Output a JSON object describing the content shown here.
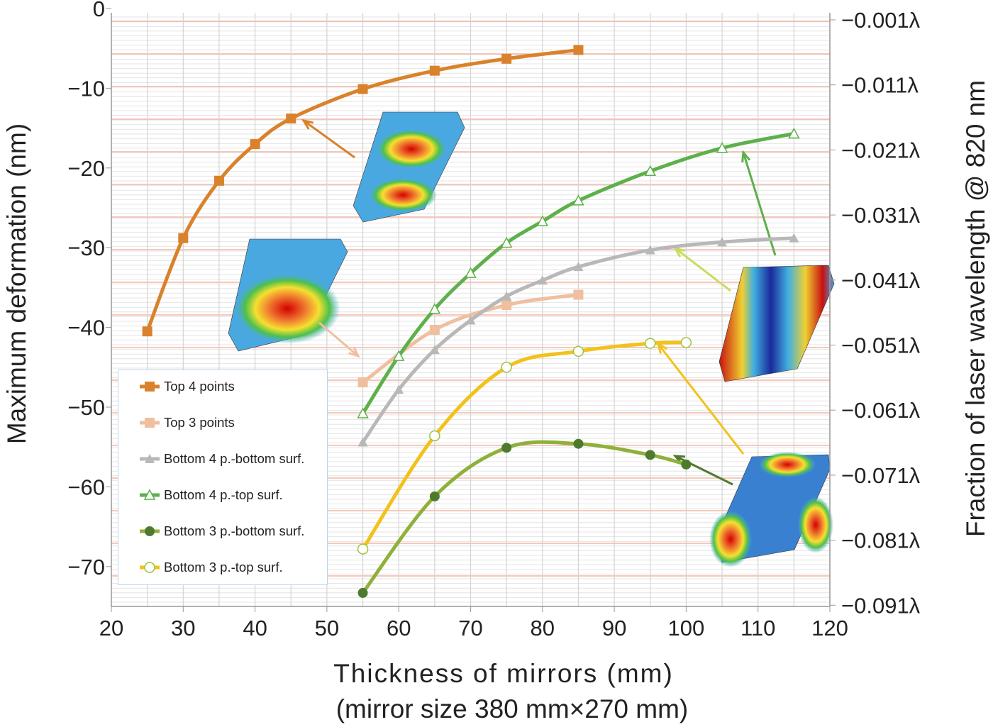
{
  "chart_data": {
    "type": "line",
    "xlabel": "Thickness of mirrors (mm)",
    "xlabel_sub": "(mirror size 380 mm×270 mm)",
    "ylabel": "Maximum deformation (nm)",
    "y2label": "Fraction of laser wavelength @ 820 nm",
    "xlim": [
      20,
      120
    ],
    "ylim": [
      -75,
      0
    ],
    "xticks": [
      "20",
      "30",
      "40",
      "50",
      "60",
      "70",
      "80",
      "90",
      "100",
      "110",
      "120"
    ],
    "yticks": [
      "0",
      "−10",
      "−20",
      "−30",
      "−40",
      "−50",
      "−60",
      "−70"
    ],
    "y2ticks": [
      "−0.001λ",
      "−0.011λ",
      "−0.021λ",
      "−0.031λ",
      "−0.041λ",
      "−0.051λ",
      "−0.061λ",
      "−0.071λ",
      "−0.081λ",
      "−0.091λ"
    ],
    "grid": true,
    "legend_position": "bottom-left",
    "series": [
      {
        "name": "Top 4 points",
        "color": "#d9822b",
        "marker": "square",
        "x": [
          25,
          30,
          35,
          40,
          45,
          55,
          65,
          75,
          85
        ],
        "y": [
          -40.5,
          -28.8,
          -21.6,
          -17.0,
          -13.8,
          -10.1,
          -7.8,
          -6.3,
          -5.2
        ]
      },
      {
        "name": "Top 3 points",
        "color": "#efbfa0",
        "marker": "square",
        "x": [
          55,
          65,
          75,
          85
        ],
        "y": [
          -46.9,
          -40.3,
          -37.2,
          -35.9
        ]
      },
      {
        "name": "Bottom 4 p.-bottom surf.",
        "color": "#b8b8b8",
        "marker": "triangle",
        "x": [
          55,
          60,
          65,
          70,
          75,
          80,
          85,
          95,
          105,
          115
        ],
        "y": [
          -54.4,
          -47.8,
          -42.8,
          -39.1,
          -36.1,
          -34.1,
          -32.4,
          -30.3,
          -29.3,
          -28.8
        ]
      },
      {
        "name": "Bottom 4 p.-top surf.",
        "color": "#5db04a",
        "marker": "triangle-open",
        "x": [
          55,
          60,
          65,
          70,
          75,
          80,
          85,
          95,
          105,
          115
        ],
        "y": [
          -50.8,
          -43.6,
          -37.7,
          -33.2,
          -29.4,
          -26.7,
          -24.1,
          -20.4,
          -17.5,
          -15.7
        ]
      },
      {
        "name": "Bottom 3 p.-bottom surf.",
        "color": "#8fb03a",
        "marker_color": "#4f7a2e",
        "marker": "circle",
        "x": [
          55,
          65,
          75,
          85,
          95,
          100
        ],
        "y": [
          -73.3,
          -61.2,
          -55.1,
          -54.6,
          -56.0,
          -57.2
        ]
      },
      {
        "name": "Bottom 3 p.-top surf.",
        "color": "#f2c21b",
        "marker_color": "#9cc23e",
        "marker": "circle-open",
        "x": [
          55,
          65,
          75,
          85,
          95,
          100
        ],
        "y": [
          -67.8,
          -53.6,
          -45.0,
          -43.0,
          -42.0,
          -41.9
        ]
      }
    ]
  }
}
